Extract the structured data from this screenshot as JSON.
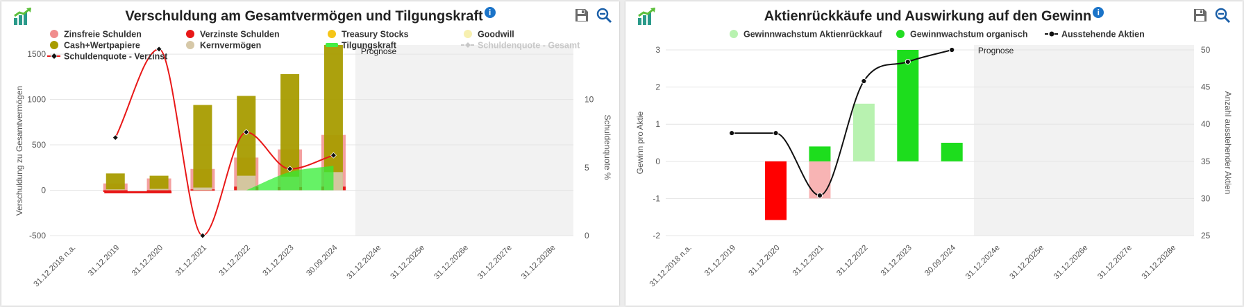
{
  "left": {
    "title": "Verschuldung am Gesamtvermögen und Tilgungskraft",
    "info_label": "i",
    "legend": [
      {
        "label": "Zinsfreie Schulden",
        "symbol": "dot",
        "color": "#f08c8c"
      },
      {
        "label": "Verzinste Schulden",
        "symbol": "dot",
        "color": "#e81818"
      },
      {
        "label": "Treasury Stocks",
        "symbol": "dot",
        "color": "#f5c518"
      },
      {
        "label": "Goodwill",
        "symbol": "dot",
        "color": "#f7f0b0"
      },
      {
        "label": "Cash+Wertpapiere",
        "symbol": "dot",
        "color": "#a89c00"
      },
      {
        "label": "Kernvermögen",
        "symbol": "dot",
        "color": "#d6c8a8"
      },
      {
        "label": "Tilgungskraft",
        "symbol": "area",
        "color": "#44ee44"
      },
      {
        "label": "Schuldenquote - Gesamt",
        "symbol": "line-grey",
        "color": "#c8c8c8"
      },
      {
        "label": "Schuldenquote - Verzinst",
        "symbol": "line",
        "color": "#e81818"
      }
    ],
    "chart_data": {
      "type": "bar",
      "categories": [
        "31.12.2018 n.a.",
        "31.12.2019",
        "31.12.2020",
        "31.12.2021",
        "31.12.2022",
        "31.12.2023",
        "30.09.2024",
        "31.12.2024e",
        "31.12.2025e",
        "31.12.2026e",
        "31.12.2027e",
        "31.12.2028e"
      ],
      "ylabel": "Verschuldung zu Gesamtvermögen",
      "ylabel_right": "Schuldenquote %",
      "ylim": [
        -500,
        1600
      ],
      "yticks": [
        -500,
        0,
        500,
        1000,
        1500
      ],
      "ylim_right": [
        0,
        14
      ],
      "yticks_right": [
        0,
        5,
        10
      ],
      "forecast_label": "Prognose",
      "forecast_start_index": 7,
      "grid": true,
      "series": [
        {
          "name": "Zinsfreie Schulden",
          "type": "bar",
          "values": [
            null,
            75,
            130,
            235,
            360,
            450,
            610,
            null,
            null,
            null,
            null,
            null
          ]
        },
        {
          "name": "Verzinste Schulden",
          "type": "bar",
          "values": [
            null,
            -20,
            -10,
            10,
            40,
            35,
            40,
            null,
            null,
            null,
            null,
            null
          ]
        },
        {
          "name": "Cash+Wertpapiere",
          "type": "bar",
          "values": [
            null,
            185,
            160,
            940,
            1040,
            1280,
            1600,
            null,
            null,
            null,
            null,
            null
          ]
        },
        {
          "name": "Kernvermögen",
          "type": "bar",
          "values": [
            null,
            10,
            15,
            30,
            160,
            150,
            200,
            null,
            null,
            null,
            null,
            null
          ]
        },
        {
          "name": "Tilgungskraft",
          "type": "area",
          "values": [
            null,
            null,
            null,
            null,
            0,
            200,
            270,
            null,
            null,
            null,
            null,
            null
          ]
        },
        {
          "name": "Schuldenquote - Verzinst",
          "type": "line",
          "axis": "right",
          "values": [
            null,
            7.2,
            13.7,
            0,
            7.6,
            4.9,
            5.9,
            null,
            null,
            null,
            null,
            null
          ]
        }
      ]
    }
  },
  "right": {
    "title": "Aktienrückkäufe und Auswirkung auf den Gewinn",
    "info_label": "i",
    "legend": [
      {
        "label": "Gewinnwachstum Aktienrückkauf",
        "symbol": "dot",
        "color": "#b8f2b0"
      },
      {
        "label": "Gewinnwachstum organisch",
        "symbol": "dot",
        "color": "#22dd22"
      },
      {
        "label": "Ausstehende Aktien",
        "symbol": "line-black",
        "color": "#111111"
      }
    ],
    "chart_data": {
      "type": "bar",
      "categories": [
        "31.12.2018 n.a.",
        "31.12.2019",
        "31.12.2020",
        "31.12.2021",
        "31.12.2022",
        "31.12.2023",
        "30.09.2024",
        "31.12.2024e",
        "31.12.2025e",
        "31.12.2026e",
        "31.12.2027e",
        "31.12.2028e"
      ],
      "ylabel": "Gewinn pro Aktie",
      "ylabel_right": "Anzahl ausstehender Aktien",
      "ylim": [
        -2,
        3
      ],
      "yticks": [
        -2,
        -1,
        0,
        1,
        2,
        3
      ],
      "ylim_right": [
        25,
        50
      ],
      "yticks_right": [
        25,
        30,
        35,
        40,
        45,
        50
      ],
      "forecast_label": "Prognose",
      "forecast_start_index": 7,
      "grid": true,
      "series": [
        {
          "name": "Gewinnwachstum Aktienrückkauf",
          "type": "bar",
          "values": [
            null,
            null,
            null,
            -1.0,
            1.55,
            null,
            null,
            null,
            null,
            null,
            null,
            null
          ]
        },
        {
          "name": "Gewinnwachstum organisch",
          "type": "bar",
          "values": [
            null,
            null,
            -1.58,
            0.4,
            null,
            3.0,
            0.5,
            null,
            null,
            null,
            null,
            null
          ]
        },
        {
          "name": "Ausstehende Aktien",
          "type": "line",
          "axis": "right",
          "values": [
            null,
            38.8,
            38.8,
            30.4,
            45.8,
            48.4,
            50.0,
            null,
            null,
            null,
            null,
            null
          ]
        }
      ]
    }
  }
}
